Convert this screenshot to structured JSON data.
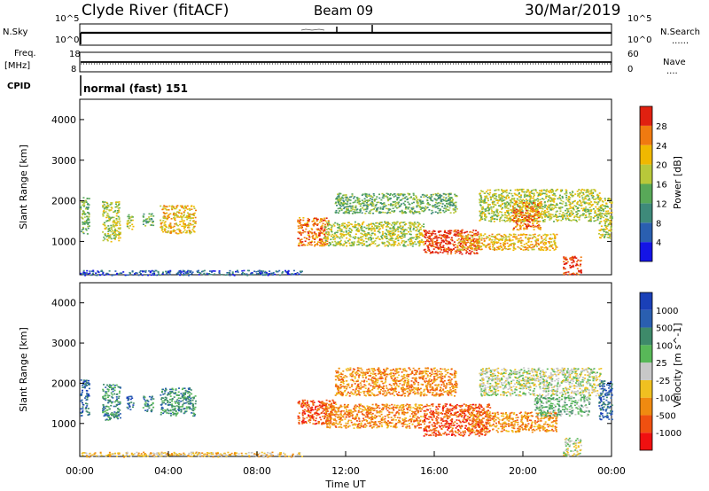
{
  "header": {
    "station": "Clyde River (fitACF)",
    "beam": "Beam 09",
    "date": "30/Mar/2019"
  },
  "strip_labels": {
    "nsky": "N.Sky",
    "freq": "Freq.",
    "freq_unit": "[MHz]",
    "cpid": "CPID",
    "nsearch": "N.Search",
    "nave": "Nave",
    "cpid_value": "normal (fast) 151"
  },
  "strip_ticks": {
    "noise_left": [
      "10^5",
      "10^0"
    ],
    "noise_right": [
      "10^5",
      "10^0"
    ],
    "freq_left": [
      "18",
      "8"
    ],
    "nave_right": [
      "60",
      "0"
    ]
  },
  "legend_marks": {
    "nsearch": "......",
    "nave": "...."
  },
  "colors": {
    "power": [
      "#1414e6",
      "#2a5fb0",
      "#3e8a7a",
      "#58a858",
      "#b8c83a",
      "#f0b800",
      "#f07a10",
      "#e02010"
    ],
    "velocity": [
      "#f01010",
      "#f05010",
      "#f08a10",
      "#f0c020",
      "#c8c8c8",
      "#58b858",
      "#3e8a6a",
      "#2a5fb0",
      "#1a40b8"
    ]
  },
  "chart_data": [
    {
      "type": "heatmap",
      "name": "power",
      "xlabel": "",
      "ylabel": "Slant Range [km]",
      "colorbar_label": "Power [dB]",
      "colorbar_ticks": [
        "28",
        "24",
        "20",
        "16",
        "12",
        "8",
        "4"
      ],
      "ylim": [
        180,
        4500
      ],
      "yticks": [
        "1000",
        "2000",
        "3000",
        "4000"
      ],
      "xlim": [
        0,
        24
      ],
      "scatter_regions": [
        {
          "t0": 0.0,
          "t1": 0.4,
          "r0": 1200,
          "r1": 2100,
          "level": 3
        },
        {
          "t0": 1.0,
          "t1": 1.8,
          "r0": 1000,
          "r1": 2000,
          "level": 4
        },
        {
          "t0": 2.1,
          "t1": 2.4,
          "r0": 1300,
          "r1": 1700,
          "level": 4
        },
        {
          "t0": 2.8,
          "t1": 3.3,
          "r0": 1400,
          "r1": 1700,
          "level": 3
        },
        {
          "t0": 3.6,
          "t1": 5.2,
          "r0": 1200,
          "r1": 1900,
          "level": 5
        },
        {
          "t0": 9.8,
          "t1": 11.2,
          "r0": 900,
          "r1": 1600,
          "level": 6
        },
        {
          "t0": 11.0,
          "t1": 15.5,
          "r0": 900,
          "r1": 1500,
          "level": 4
        },
        {
          "t0": 11.5,
          "t1": 17.0,
          "r0": 1700,
          "r1": 2200,
          "level": 3
        },
        {
          "t0": 15.5,
          "t1": 18.0,
          "r0": 700,
          "r1": 1300,
          "level": 7
        },
        {
          "t0": 17.0,
          "t1": 21.5,
          "r0": 800,
          "r1": 1200,
          "level": 5
        },
        {
          "t0": 18.0,
          "t1": 23.5,
          "r0": 1500,
          "r1": 2300,
          "level": 4
        },
        {
          "t0": 19.5,
          "t1": 20.8,
          "r0": 1300,
          "r1": 2000,
          "level": 6
        },
        {
          "t0": 21.8,
          "t1": 22.6,
          "r0": 200,
          "r1": 650,
          "level": 7
        },
        {
          "t0": 23.4,
          "t1": 24.0,
          "r0": 1100,
          "r1": 2100,
          "level": 4
        },
        {
          "t0": 0.0,
          "t1": 10.0,
          "r0": 180,
          "r1": 300,
          "level": 1
        }
      ]
    },
    {
      "type": "heatmap",
      "name": "velocity",
      "xlabel": "Time UT",
      "ylabel": "Slant Range [km]",
      "colorbar_label": "Velocity [m s^-1]",
      "colorbar_ticks": [
        "1000",
        "500",
        "100",
        "25",
        "-25",
        "-100",
        "-500",
        "-1000"
      ],
      "ylim": [
        180,
        4500
      ],
      "yticks": [
        "1000",
        "2000",
        "3000",
        "4000"
      ],
      "xlim": [
        0,
        24
      ],
      "xticks": [
        "00:00",
        "04:00",
        "08:00",
        "12:00",
        "16:00",
        "20:00",
        "00:00"
      ],
      "scatter_regions": [
        {
          "t0": 0.0,
          "t1": 0.4,
          "r0": 1200,
          "r1": 2100,
          "level": 7
        },
        {
          "t0": 1.0,
          "t1": 1.8,
          "r0": 1100,
          "r1": 2000,
          "level": 6
        },
        {
          "t0": 2.1,
          "t1": 2.4,
          "r0": 1300,
          "r1": 1700,
          "level": 7
        },
        {
          "t0": 2.8,
          "t1": 3.3,
          "r0": 1300,
          "r1": 1700,
          "level": 6
        },
        {
          "t0": 3.6,
          "t1": 5.2,
          "r0": 1200,
          "r1": 1900,
          "level": 6
        },
        {
          "t0": 9.8,
          "t1": 11.5,
          "r0": 1000,
          "r1": 1600,
          "level": 1
        },
        {
          "t0": 11.0,
          "t1": 15.5,
          "r0": 900,
          "r1": 1500,
          "level": 2
        },
        {
          "t0": 11.5,
          "t1": 17.0,
          "r0": 1700,
          "r1": 2400,
          "level": 2
        },
        {
          "t0": 15.5,
          "t1": 18.5,
          "r0": 700,
          "r1": 1500,
          "level": 1
        },
        {
          "t0": 17.5,
          "t1": 21.5,
          "r0": 800,
          "r1": 1300,
          "level": 2
        },
        {
          "t0": 18.0,
          "t1": 23.5,
          "r0": 1700,
          "r1": 2400,
          "level": 4
        },
        {
          "t0": 20.5,
          "t1": 23.0,
          "r0": 1200,
          "r1": 1700,
          "level": 5
        },
        {
          "t0": 21.8,
          "t1": 22.6,
          "r0": 200,
          "r1": 650,
          "level": 4
        },
        {
          "t0": 23.4,
          "t1": 24.0,
          "r0": 1100,
          "r1": 2100,
          "level": 7
        },
        {
          "t0": 0.0,
          "t1": 10.0,
          "r0": 180,
          "r1": 300,
          "level": 3
        }
      ]
    }
  ]
}
